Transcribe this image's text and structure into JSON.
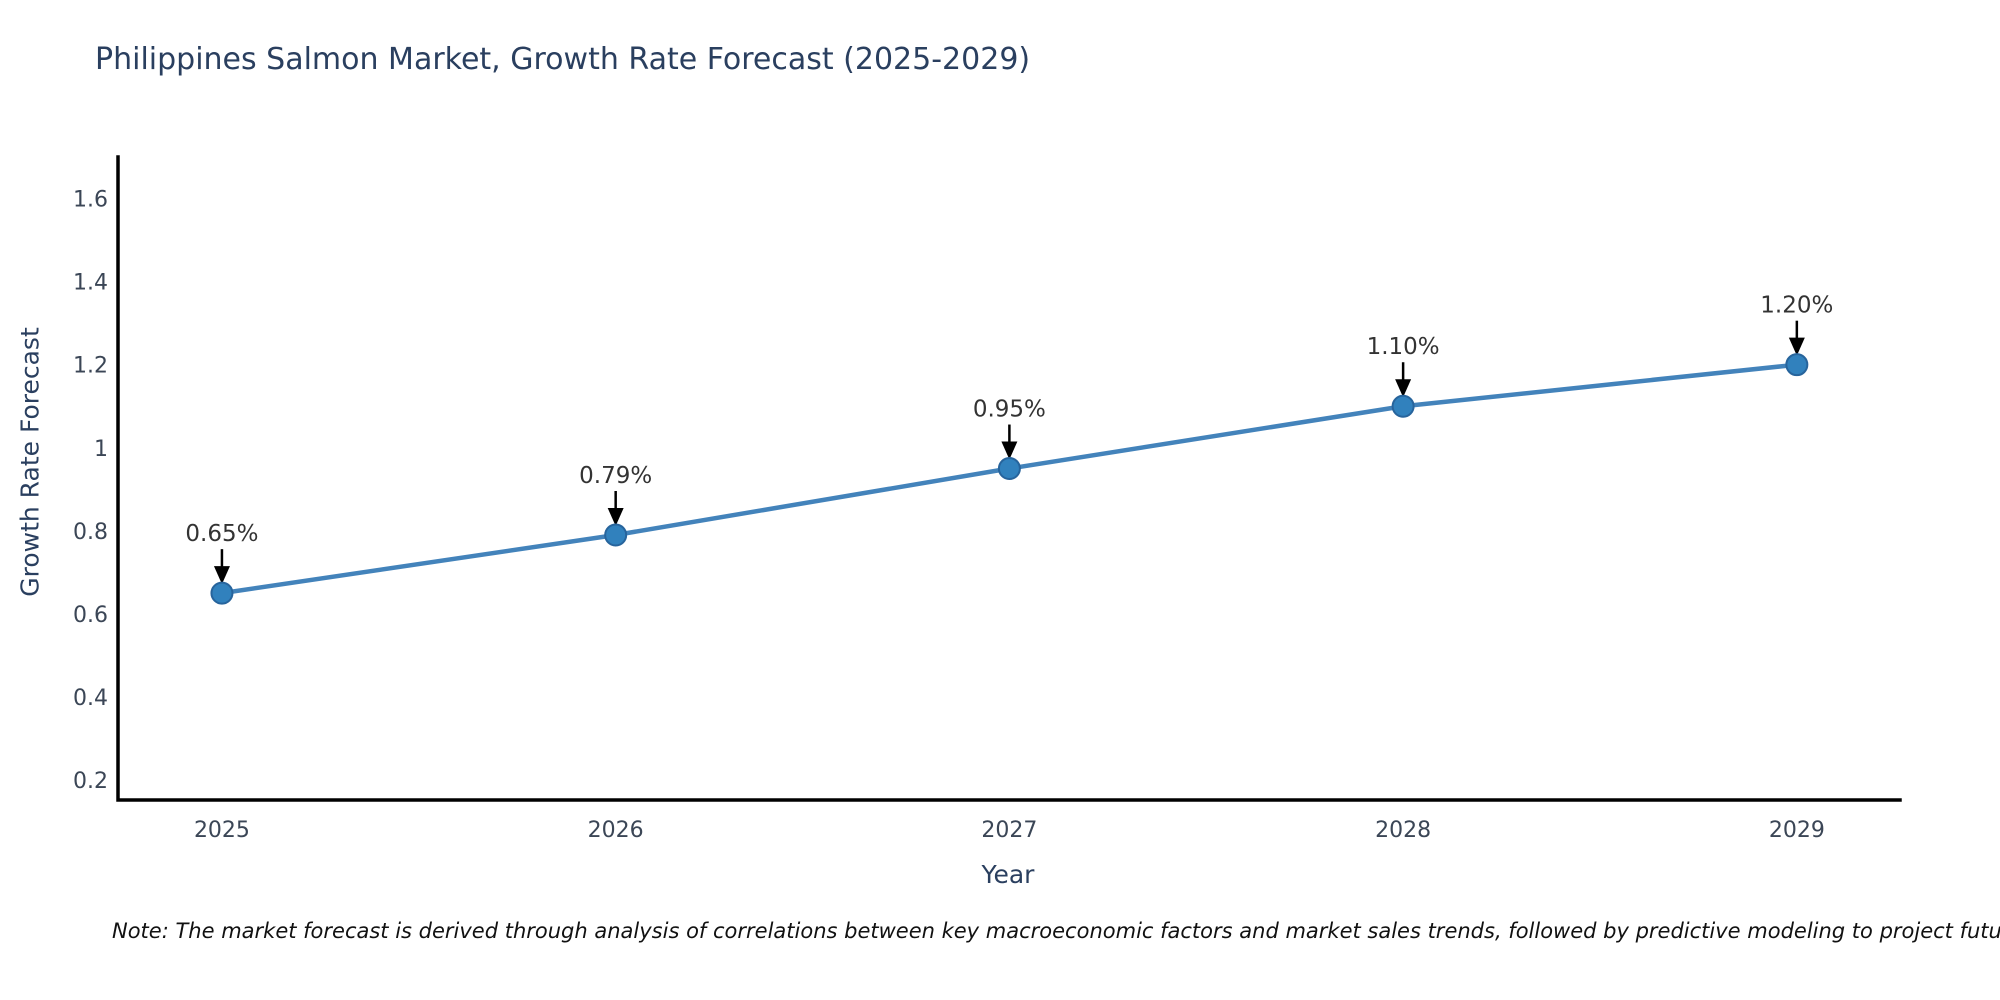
{
  "note": "Note: The market forecast is derived through analysis of correlations between key macroeconomic factors and market sales trends, followed by predictive modeling to project future sales",
  "chart_data": {
    "type": "line",
    "title": "Philippines Salmon Market, Growth Rate Forecast (2025-2029)",
    "xlabel": "Year",
    "ylabel": "Growth Rate Forecast",
    "x": [
      2025,
      2026,
      2027,
      2028,
      2029
    ],
    "series": [
      {
        "name": "Growth Rate Forecast",
        "values": [
          0.65,
          0.79,
          0.95,
          1.1,
          1.2
        ]
      }
    ],
    "point_labels": [
      "0.65%",
      "0.79%",
      "0.95%",
      "1.10%",
      "1.20%"
    ],
    "yticks": [
      0.2,
      0.4,
      0.6,
      0.8,
      1,
      1.2,
      1.4,
      1.6
    ],
    "ylim": [
      0.152,
      1.7
    ],
    "xlim": [
      2024.736,
      2029.262
    ],
    "grid": false,
    "legend": "none",
    "marker_size": 21,
    "annotation_arrow": "down-arrow",
    "colors": {
      "line": "#4383bb",
      "marker": "#3181bd",
      "marker_edge": "#27649c",
      "axis": "#000000",
      "axis_text": "#3b4656",
      "annotation_text": "#333333",
      "title_text": "#2a3f5f"
    }
  }
}
